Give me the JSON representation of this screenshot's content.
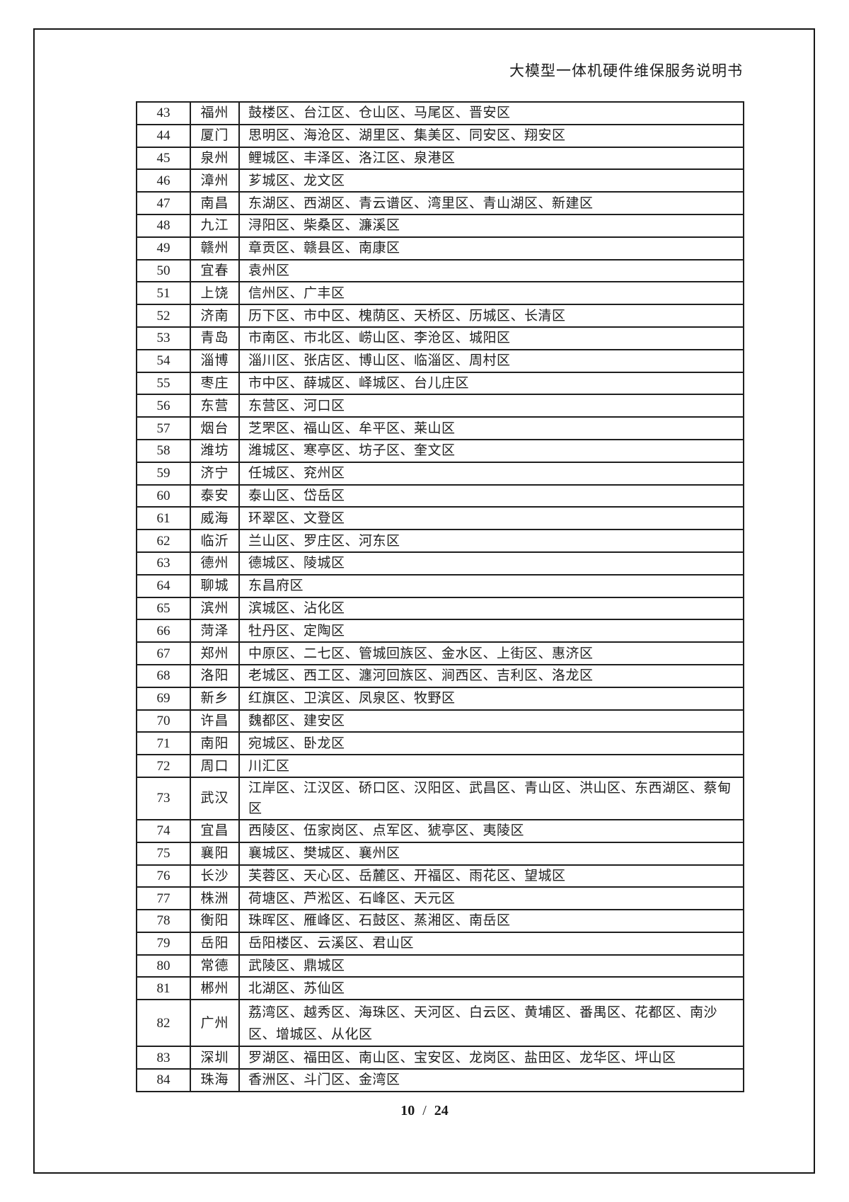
{
  "header": {
    "title": "大模型一体机硬件维保服务说明书"
  },
  "table": {
    "rows": [
      {
        "num": "43",
        "city": "福州",
        "districts": "鼓楼区、台江区、仓山区、马尾区、晋安区"
      },
      {
        "num": "44",
        "city": "厦门",
        "districts": "思明区、海沧区、湖里区、集美区、同安区、翔安区"
      },
      {
        "num": "45",
        "city": "泉州",
        "districts": "鲤城区、丰泽区、洛江区、泉港区"
      },
      {
        "num": "46",
        "city": "漳州",
        "districts": "芗城区、龙文区"
      },
      {
        "num": "47",
        "city": "南昌",
        "districts": "东湖区、西湖区、青云谱区、湾里区、青山湖区、新建区"
      },
      {
        "num": "48",
        "city": "九江",
        "districts": "浔阳区、柴桑区、濂溪区"
      },
      {
        "num": "49",
        "city": "赣州",
        "districts": "章贡区、赣县区、南康区"
      },
      {
        "num": "50",
        "city": "宜春",
        "districts": "袁州区"
      },
      {
        "num": "51",
        "city": "上饶",
        "districts": "信州区、广丰区"
      },
      {
        "num": "52",
        "city": "济南",
        "districts": "历下区、市中区、槐荫区、天桥区、历城区、长清区"
      },
      {
        "num": "53",
        "city": "青岛",
        "districts": "市南区、市北区、崂山区、李沧区、城阳区"
      },
      {
        "num": "54",
        "city": "淄博",
        "districts": "淄川区、张店区、博山区、临淄区、周村区"
      },
      {
        "num": "55",
        "city": "枣庄",
        "districts": "市中区、薛城区、峄城区、台儿庄区"
      },
      {
        "num": "56",
        "city": "东营",
        "districts": "东营区、河口区"
      },
      {
        "num": "57",
        "city": "烟台",
        "districts": "芝罘区、福山区、牟平区、莱山区"
      },
      {
        "num": "58",
        "city": "潍坊",
        "districts": "潍城区、寒亭区、坊子区、奎文区"
      },
      {
        "num": "59",
        "city": "济宁",
        "districts": "任城区、兖州区"
      },
      {
        "num": "60",
        "city": "泰安",
        "districts": "泰山区、岱岳区"
      },
      {
        "num": "61",
        "city": "威海",
        "districts": "环翠区、文登区"
      },
      {
        "num": "62",
        "city": "临沂",
        "districts": "兰山区、罗庄区、河东区"
      },
      {
        "num": "63",
        "city": "德州",
        "districts": "德城区、陵城区"
      },
      {
        "num": "64",
        "city": "聊城",
        "districts": "东昌府区"
      },
      {
        "num": "65",
        "city": "滨州",
        "districts": "滨城区、沾化区"
      },
      {
        "num": "66",
        "city": "菏泽",
        "districts": "牡丹区、定陶区"
      },
      {
        "num": "67",
        "city": "郑州",
        "districts": "中原区、二七区、管城回族区、金水区、上街区、惠济区"
      },
      {
        "num": "68",
        "city": "洛阳",
        "districts": "老城区、西工区、瀍河回族区、涧西区、吉利区、洛龙区"
      },
      {
        "num": "69",
        "city": "新乡",
        "districts": "红旗区、卫滨区、凤泉区、牧野区"
      },
      {
        "num": "70",
        "city": "许昌",
        "districts": "魏都区、建安区"
      },
      {
        "num": "71",
        "city": "南阳",
        "districts": "宛城区、卧龙区"
      },
      {
        "num": "72",
        "city": "周口",
        "districts": "川汇区"
      },
      {
        "num": "73",
        "city": "武汉",
        "districts": "江岸区、江汉区、硚口区、汉阳区、武昌区、青山区、洪山区、东西湖区、蔡甸区"
      },
      {
        "num": "74",
        "city": "宜昌",
        "districts": "西陵区、伍家岗区、点军区、猇亭区、夷陵区"
      },
      {
        "num": "75",
        "city": "襄阳",
        "districts": "襄城区、樊城区、襄州区"
      },
      {
        "num": "76",
        "city": "长沙",
        "districts": "芙蓉区、天心区、岳麓区、开福区、雨花区、望城区"
      },
      {
        "num": "77",
        "city": "株洲",
        "districts": "荷塘区、芦淞区、石峰区、天元区"
      },
      {
        "num": "78",
        "city": "衡阳",
        "districts": "珠晖区、雁峰区、石鼓区、蒸湘区、南岳区"
      },
      {
        "num": "79",
        "city": "岳阳",
        "districts": "岳阳楼区、云溪区、君山区"
      },
      {
        "num": "80",
        "city": "常德",
        "districts": "武陵区、鼎城区"
      },
      {
        "num": "81",
        "city": "郴州",
        "districts": "北湖区、苏仙区"
      },
      {
        "num": "82",
        "city": "广州",
        "districts": "荔湾区、越秀区、海珠区、天河区、白云区、黄埔区、番禺区、花都区、南沙区、增城区、从化区",
        "tall": true
      },
      {
        "num": "83",
        "city": "深圳",
        "districts": "罗湖区、福田区、南山区、宝安区、龙岗区、盐田区、龙华区、坪山区"
      },
      {
        "num": "84",
        "city": "珠海",
        "districts": "香洲区、斗门区、金湾区"
      }
    ]
  },
  "footer": {
    "page_current": "10",
    "page_separator": "/",
    "page_total": "24"
  }
}
